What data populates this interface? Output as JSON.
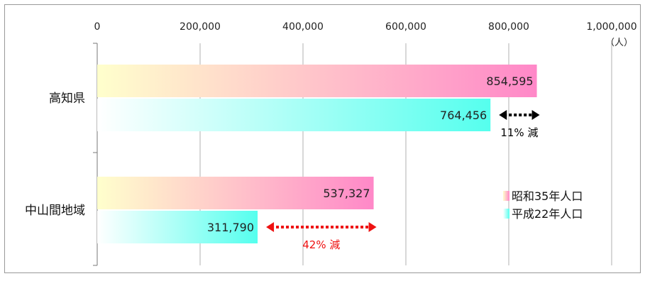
{
  "chart_data": {
    "type": "bar",
    "orientation": "horizontal",
    "categories": [
      "高知県",
      "中山間地域"
    ],
    "series": [
      {
        "name": "昭和35年人口",
        "values": [
          854595,
          537327
        ],
        "value_labels": [
          "854,595",
          "537,327"
        ],
        "gradient": [
          "#ffffcc",
          "#ff88c8"
        ]
      },
      {
        "name": "平成22年人口",
        "values": [
          764456,
          311790
        ],
        "value_labels": [
          "764,456",
          "311,790"
        ],
        "gradient": [
          "#ffffff",
          "#55ffee"
        ]
      }
    ],
    "xlim": [
      0,
      1000000
    ],
    "ticks": [
      0,
      200000,
      400000,
      600000,
      800000,
      1000000
    ],
    "tick_labels": [
      "0",
      "200,000",
      "400,000",
      "600,000",
      "800,000",
      "1,000,000"
    ],
    "unit_label": "（人）",
    "grid": true,
    "legend_position": "right",
    "annotations": [
      {
        "category_index": 0,
        "text": "11% 減",
        "color": "#000000"
      },
      {
        "category_index": 1,
        "text": "42% 減",
        "color": "#ee1111"
      }
    ]
  }
}
